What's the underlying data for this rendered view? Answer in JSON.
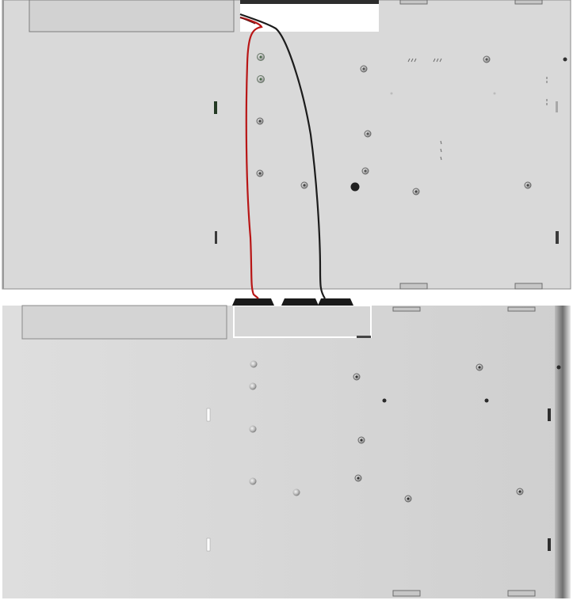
{
  "scene": {
    "description_visible_text": "",
    "parts": {
      "top_panel": {
        "name": "chassis-top-panel"
      },
      "bottom_panel": {
        "name": "chassis-bottom-panel"
      },
      "red_wire": {
        "name": "red-wire",
        "color": "#b81616"
      },
      "black_wire": {
        "name": "black-wire",
        "color": "#1c1c1c"
      },
      "connectors": {
        "name": "wire-connectors",
        "count": 3
      }
    },
    "colors": {
      "panel": "#d8d8d8",
      "panel_edge": "#7a7a7a",
      "screw": "#5a5a5a",
      "slot": "#2a3a2a",
      "background": "#ffffff"
    }
  }
}
